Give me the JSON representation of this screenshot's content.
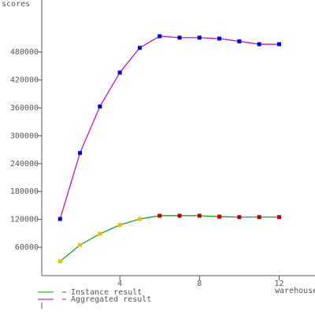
{
  "chart_data": {
    "type": "line",
    "y_label": "scores",
    "x_label": "warehouses",
    "x": [
      1,
      2,
      3,
      4,
      5,
      6,
      7,
      8,
      9,
      10,
      11,
      12
    ],
    "series": [
      {
        "name": "Instance result",
        "color": "#00a000",
        "marker_colors": [
          "#e8c000",
          "#e8c000",
          "#e8c000",
          "#e8c000",
          "#e8c000",
          "#c00000",
          "#c00000",
          "#c00000",
          "#c00000",
          "#c00000",
          "#c00000",
          "#c00000"
        ],
        "values": [
          30000,
          65000,
          89000,
          108000,
          121000,
          128000,
          128000,
          128000,
          126000,
          125000,
          125000,
          125000
        ]
      },
      {
        "name": "Aggregated result",
        "color": "#c000c0",
        "marker_colors": [
          "#0000e0",
          "#0000e0",
          "#0000e0",
          "#0000e0",
          "#0000e0",
          "#0000e0",
          "#0000e0",
          "#0000e0",
          "#0000e0",
          "#0000e0",
          "#0000e0",
          "#0000e0"
        ],
        "values": [
          121000,
          263000,
          363000,
          436000,
          489000,
          514000,
          511000,
          511000,
          509000,
          503000,
          497000,
          497000
        ]
      }
    ],
    "xlim": [
      0,
      13.8
    ],
    "ylim": [
      0,
      592000
    ],
    "xticks": [
      4,
      8,
      12
    ],
    "yticks": [
      60000,
      120000,
      180000,
      240000,
      300000,
      360000,
      420000,
      480000
    ]
  }
}
